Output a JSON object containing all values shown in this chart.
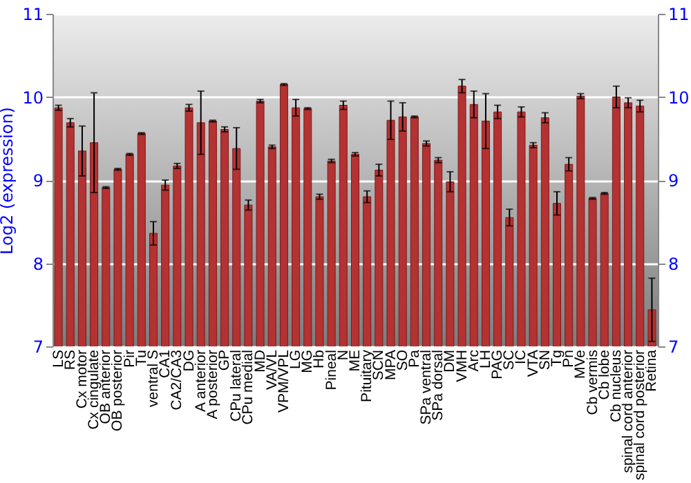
{
  "chart_data": {
    "type": "bar",
    "ylabel": "Log2 (expression)",
    "categories": [
      "LS",
      "RS",
      "Cx motor",
      "Cx cingulate",
      "OB anterior",
      "OB posterior",
      "Pir",
      "Tu",
      "ventral S",
      "CA1",
      "CA2/CA3",
      "DG",
      "A anterior",
      "A posterior",
      "GP",
      "CPu lateral",
      "CPu medial",
      "MD",
      "VA/VL",
      "VPM/VPL",
      "LG",
      "MG",
      "Hb",
      "Pineal",
      "N",
      "ME",
      "Pituitary",
      "SCN",
      "MPA",
      "SO",
      "Pa",
      "SPa ventral",
      "SPa dorsal",
      "DM",
      "VMH",
      "Arc",
      "LH",
      "PAG",
      "SC",
      "IC",
      "VTA",
      "SN",
      "Tg",
      "Pn",
      "MVe",
      "Cb vermis",
      "Cb lobe",
      "Cb nucleus",
      "spinal cord anterior",
      "spinal cord posterior",
      "Retina"
    ],
    "values": [
      9.87,
      9.69,
      9.35,
      9.45,
      8.91,
      9.13,
      9.31,
      9.56,
      8.36,
      8.94,
      9.17,
      9.87,
      9.69,
      9.71,
      9.61,
      9.38,
      8.7,
      9.95,
      9.4,
      10.15,
      9.87,
      9.86,
      8.8,
      9.23,
      9.9,
      9.31,
      8.8,
      9.12,
      9.72,
      9.76,
      9.76,
      9.44,
      9.24,
      8.98,
      10.13,
      9.91,
      9.71,
      9.82,
      8.55,
      9.82,
      9.42,
      9.75,
      8.72,
      9.19,
      10.01,
      8.78,
      8.84,
      10.0,
      9.93,
      9.89,
      7.44
    ],
    "errors": [
      0.03,
      0.05,
      0.3,
      0.6,
      0.01,
      0.01,
      0.01,
      0.01,
      0.14,
      0.06,
      0.03,
      0.04,
      0.38,
      0.01,
      0.03,
      0.25,
      0.06,
      0.02,
      0.02,
      0.01,
      0.1,
      0.01,
      0.03,
      0.02,
      0.05,
      0.02,
      0.07,
      0.07,
      0.23,
      0.17,
      0.01,
      0.03,
      0.03,
      0.12,
      0.08,
      0.16,
      0.33,
      0.08,
      0.1,
      0.06,
      0.03,
      0.06,
      0.14,
      0.08,
      0.03,
      0.01,
      0.01,
      0.13,
      0.06,
      0.07,
      0.38
    ],
    "color": "#b53232",
    "ylim": [
      7,
      11
    ],
    "yticks": [
      7,
      8,
      9,
      10,
      11
    ],
    "y2lim": [
      7,
      11
    ],
    "y2ticks": [
      7,
      8,
      9,
      10,
      11
    ],
    "grid": "y"
  }
}
